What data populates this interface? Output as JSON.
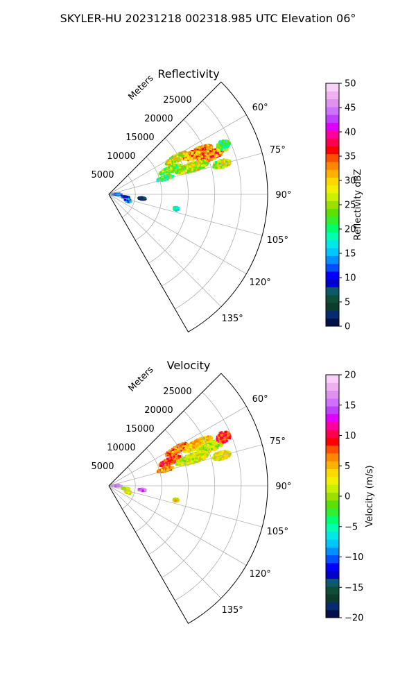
{
  "suptitle": "SKYLER-HU  20231218  002318.985 UTC Elevation 06°",
  "chart_data": [
    {
      "type": "polar-sector",
      "title": "Reflectivity",
      "radial_label": "Meters",
      "theta_range_deg": [
        45,
        150
      ],
      "radial_range": [
        0,
        30000
      ],
      "radial_ticks": [
        5000,
        10000,
        15000,
        20000,
        25000
      ],
      "radial_tick_labels": [
        "5000",
        "10000",
        "15000",
        "20000",
        "25000"
      ],
      "theta_ticks": [
        60,
        75,
        90,
        105,
        120,
        135
      ],
      "theta_tick_labels": [
        "60°",
        "75°",
        "90°",
        "105°",
        "120°",
        "135°"
      ],
      "grid": true,
      "colorbar": {
        "label": "Reflectivity dBZ",
        "range": [
          0,
          50
        ],
        "ticks": [
          0,
          5,
          10,
          15,
          20,
          25,
          30,
          35,
          40,
          45,
          50
        ],
        "tick_labels": [
          "0",
          "5",
          "10",
          "15",
          "20",
          "25",
          "30",
          "35",
          "40",
          "45",
          "50"
        ],
        "colors": [
          "#04104a",
          "#082a6e",
          "#0b3c2c",
          "#0e4d36",
          "#0a5a6a",
          "#0000c8",
          "#0000ff",
          "#0050ff",
          "#0090ff",
          "#00c8ff",
          "#00e8e8",
          "#00ffb0",
          "#00ff70",
          "#30f030",
          "#5ce000",
          "#9ae000",
          "#c8f000",
          "#f0f000",
          "#ffd800",
          "#ffb000",
          "#ff8800",
          "#ff5000",
          "#ff0000",
          "#ff0050",
          "#ff00a0",
          "#e000ff",
          "#c040ff",
          "#d070ff",
          "#e090f0",
          "#f0b0f0",
          "#f8d0f8"
        ]
      },
      "echoes": [
        {
          "az": 62,
          "r": 14500,
          "val": 28,
          "ar": 2300,
          "at": 2.5
        },
        {
          "az": 65,
          "r": 18500,
          "val": 31,
          "ar": 3000,
          "at": 2.6
        },
        {
          "az": 68,
          "r": 12500,
          "val": 25,
          "ar": 2200,
          "at": 2.6
        },
        {
          "az": 69,
          "r": 20500,
          "val": 33,
          "ar": 2600,
          "at": 2.5
        },
        {
          "az": 72,
          "r": 16500,
          "val": 27,
          "ar": 3200,
          "at": 3.0
        },
        {
          "az": 74,
          "r": 11000,
          "val": 22,
          "ar": 1600,
          "at": 2.0
        },
        {
          "az": 75,
          "r": 22000,
          "val": 26,
          "ar": 1800,
          "at": 2.0
        },
        {
          "az": 67,
          "r": 23500,
          "val": 22,
          "ar": 1300,
          "at": 2.5
        },
        {
          "az": 86,
          "r": 1200,
          "val": 16,
          "ar": 800,
          "at": 3.0
        },
        {
          "az": 92,
          "r": 1500,
          "val": 12,
          "ar": 900,
          "at": 3.0
        },
        {
          "az": 100,
          "r": 3200,
          "val": 8,
          "ar": 800,
          "at": 3.0
        },
        {
          "az": 108,
          "r": 3800,
          "val": 14,
          "ar": 600,
          "at": 4.0
        },
        {
          "az": 97,
          "r": 6300,
          "val": 5,
          "ar": 700,
          "at": 2.0
        },
        {
          "az": 102,
          "r": 13000,
          "val": 18,
          "ar": 500,
          "at": 1.5
        }
      ]
    },
    {
      "type": "polar-sector",
      "title": "Velocity",
      "radial_label": "Meters",
      "theta_range_deg": [
        45,
        150
      ],
      "radial_range": [
        0,
        30000
      ],
      "radial_ticks": [
        5000,
        10000,
        15000,
        20000,
        25000
      ],
      "radial_tick_labels": [
        "5000",
        "10000",
        "15000",
        "20000",
        "25000"
      ],
      "theta_ticks": [
        60,
        75,
        90,
        105,
        120,
        135
      ],
      "theta_tick_labels": [
        "60°",
        "75°",
        "90°",
        "105°",
        "120°",
        "135°"
      ],
      "grid": true,
      "colorbar": {
        "label": "Velocity (m/s)",
        "range": [
          -20,
          20
        ],
        "ticks": [
          -20,
          -15,
          -10,
          -5,
          0,
          5,
          10,
          15,
          20
        ],
        "tick_labels": [
          "−20",
          "−15",
          "−10",
          "−5",
          "0",
          "5",
          "10",
          "15",
          "20"
        ],
        "colors": [
          "#04104a",
          "#082a6e",
          "#0b3c2c",
          "#0e4d36",
          "#0a5a6a",
          "#0000c8",
          "#0000ff",
          "#0050ff",
          "#0090ff",
          "#00c8ff",
          "#00e8e8",
          "#00ffb0",
          "#00ff70",
          "#30f030",
          "#5ce000",
          "#9ae000",
          "#c8f000",
          "#f0f000",
          "#ffd800",
          "#ffb000",
          "#ff8800",
          "#ff5000",
          "#ff0000",
          "#ff0050",
          "#ff00a0",
          "#e000ff",
          "#c040ff",
          "#d070ff",
          "#e090f0",
          "#f0b0f0",
          "#f8d0f8"
        ]
      },
      "echoes": [
        {
          "az": 62,
          "r": 14500,
          "val": 7,
          "ar": 2300,
          "at": 2.5
        },
        {
          "az": 65,
          "r": 18500,
          "val": 4,
          "ar": 3000,
          "at": 2.6
        },
        {
          "az": 68,
          "r": 12500,
          "val": 8,
          "ar": 2200,
          "at": 2.6
        },
        {
          "az": 69,
          "r": 20500,
          "val": 1,
          "ar": 2600,
          "at": 2.5
        },
        {
          "az": 72,
          "r": 16500,
          "val": 2,
          "ar": 3200,
          "at": 3.0
        },
        {
          "az": 74,
          "r": 11000,
          "val": 6,
          "ar": 1600,
          "at": 2.0
        },
        {
          "az": 75,
          "r": 22000,
          "val": 3,
          "ar": 1800,
          "at": 2.0
        },
        {
          "az": 67,
          "r": 23500,
          "val": 9,
          "ar": 1300,
          "at": 2.5
        },
        {
          "az": 86,
          "r": 1200,
          "val": -5,
          "ar": 800,
          "at": 3.0
        },
        {
          "az": 92,
          "r": 1500,
          "val": 17,
          "ar": 900,
          "at": 3.0
        },
        {
          "az": 100,
          "r": 3200,
          "val": 1,
          "ar": 800,
          "at": 3.0
        },
        {
          "az": 108,
          "r": 3800,
          "val": 2,
          "ar": 600,
          "at": 4.0
        },
        {
          "az": 97,
          "r": 6300,
          "val": 16,
          "ar": 700,
          "at": 2.0
        },
        {
          "az": 102,
          "r": 13000,
          "val": 3,
          "ar": 500,
          "at": 1.5
        }
      ]
    }
  ]
}
